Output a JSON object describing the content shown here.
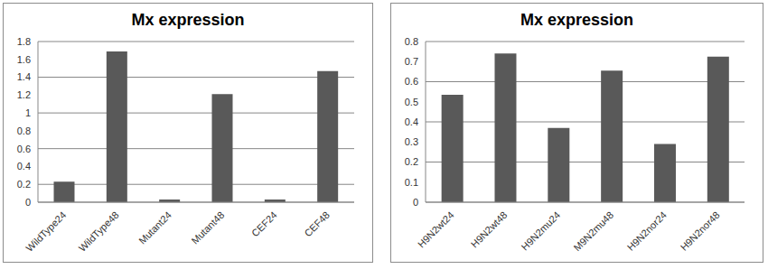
{
  "chart_data": [
    {
      "type": "bar",
      "title": "Mx expression",
      "categories": [
        "WildType24",
        "WildType48",
        "Mutant24",
        "Mutant48",
        "CEF24",
        "CEF48"
      ],
      "values": [
        0.23,
        1.69,
        0.03,
        1.21,
        0.03,
        1.47
      ],
      "color": "#595959",
      "ylim": [
        0,
        1.8
      ],
      "yticks": [
        0,
        0.2,
        0.4,
        0.6,
        0.8,
        1,
        1.2,
        1.4,
        1.6,
        1.8
      ],
      "grid": true
    },
    {
      "type": "bar",
      "title": "Mx expression",
      "categories": [
        "H9N2wt24",
        "H9N2wt48",
        "H9N2mu24",
        "M9N2mu48",
        "H9N2nor24",
        "H9N2nor48"
      ],
      "values": [
        0.535,
        0.74,
        0.37,
        0.655,
        0.29,
        0.725
      ],
      "color": "#595959",
      "ylim": [
        0,
        0.8
      ],
      "yticks": [
        0,
        0.1,
        0.2,
        0.3,
        0.4,
        0.5,
        0.6,
        0.7,
        0.8
      ],
      "grid": true
    }
  ]
}
